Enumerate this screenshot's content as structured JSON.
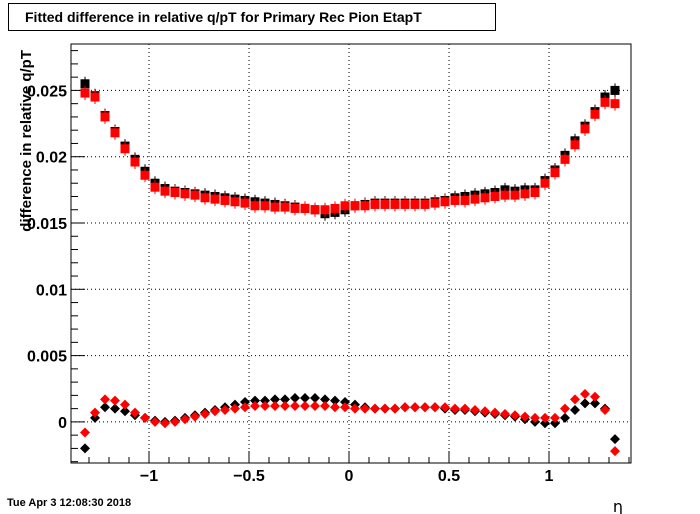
{
  "chart_data": {
    "type": "scatter",
    "title": "Fitted difference in relative q/pT for Primary Rec Pion EtapT",
    "xlabel": "η",
    "ylabel": "difference in relative q/pT",
    "xlim": [
      -1.39,
      1.41
    ],
    "ylim": [
      -0.0031,
      0.0285
    ],
    "grid": true,
    "x_ticks": [
      -1,
      -0.5,
      0,
      0.5,
      1
    ],
    "x_tick_labels": [
      "−1",
      "−0.5",
      "0",
      "0.5",
      "1"
    ],
    "y_ticks": [
      0,
      0.005,
      0.01,
      0.015,
      0.02,
      0.025
    ],
    "y_tick_labels": [
      "0",
      "0.005",
      "0.01",
      "0.015",
      "0.02",
      "0.025"
    ],
    "x": [
      -1.32,
      -1.27,
      -1.22,
      -1.17,
      -1.12,
      -1.07,
      -1.02,
      -0.97,
      -0.92,
      -0.87,
      -0.82,
      -0.77,
      -0.72,
      -0.67,
      -0.62,
      -0.57,
      -0.52,
      -0.47,
      -0.42,
      -0.37,
      -0.32,
      -0.27,
      -0.22,
      -0.17,
      -0.12,
      -0.07,
      -0.02,
      0.03,
      0.08,
      0.13,
      0.18,
      0.23,
      0.28,
      0.33,
      0.38,
      0.43,
      0.48,
      0.53,
      0.58,
      0.63,
      0.68,
      0.73,
      0.78,
      0.83,
      0.88,
      0.93,
      0.98,
      1.03,
      1.08,
      1.13,
      1.18,
      1.23,
      1.28,
      1.33
    ],
    "series": [
      {
        "color": "#000000",
        "marker": "square",
        "values": [
          0.0255,
          0.0246,
          0.0231,
          0.0219,
          0.0208,
          0.0198,
          0.0189,
          0.018,
          0.0176,
          0.0174,
          0.0173,
          0.0172,
          0.0171,
          0.017,
          0.0169,
          0.0168,
          0.0167,
          0.0166,
          0.0165,
          0.0164,
          0.0163,
          0.0162,
          0.0161,
          0.016,
          0.0157,
          0.0158,
          0.016,
          0.0163,
          0.0164,
          0.0165,
          0.0165,
          0.0165,
          0.0165,
          0.0165,
          0.0165,
          0.0166,
          0.0167,
          0.0169,
          0.017,
          0.0171,
          0.0172,
          0.0173,
          0.0175,
          0.0174,
          0.0175,
          0.0175,
          0.0182,
          0.019,
          0.0201,
          0.0212,
          0.0223,
          0.0234,
          0.0245,
          0.025
        ]
      },
      {
        "color": "#ff0000",
        "marker": "square",
        "values": [
          0.0248,
          0.0245,
          0.023,
          0.0218,
          0.0206,
          0.0196,
          0.0186,
          0.0177,
          0.0174,
          0.0173,
          0.0172,
          0.0171,
          0.0169,
          0.0168,
          0.0167,
          0.0166,
          0.0165,
          0.0163,
          0.0163,
          0.0162,
          0.0162,
          0.0161,
          0.0161,
          0.016,
          0.016,
          0.0161,
          0.0163,
          0.0163,
          0.0163,
          0.0164,
          0.0164,
          0.0164,
          0.0164,
          0.0164,
          0.0164,
          0.0165,
          0.0166,
          0.0167,
          0.0167,
          0.0168,
          0.0169,
          0.017,
          0.0171,
          0.0171,
          0.0172,
          0.0173,
          0.018,
          0.0188,
          0.0198,
          0.0209,
          0.0221,
          0.0232,
          0.0241,
          0.024
        ]
      },
      {
        "color": "#000000",
        "marker": "diamond",
        "values": [
          -0.002,
          0.0003,
          0.0011,
          0.001,
          0.0008,
          0.0005,
          0.0003,
          0.0001,
          0.0,
          0.0001,
          0.0003,
          0.0005,
          0.0007,
          0.0009,
          0.0011,
          0.0013,
          0.0015,
          0.0016,
          0.0016,
          0.0017,
          0.0017,
          0.0018,
          0.0018,
          0.0018,
          0.0017,
          0.0016,
          0.0015,
          0.0013,
          0.0011,
          0.001,
          0.001,
          0.001,
          0.0011,
          0.0011,
          0.0011,
          0.0011,
          0.001,
          0.0009,
          0.0009,
          0.0008,
          0.0007,
          0.0006,
          0.0005,
          0.0004,
          0.0002,
          0.0,
          -0.0001,
          -0.0001,
          0.0003,
          0.0009,
          0.0014,
          0.0014,
          0.001,
          -0.0013
        ]
      },
      {
        "color": "#ff0000",
        "marker": "diamond",
        "values": [
          -0.0008,
          0.0007,
          0.0017,
          0.0016,
          0.0013,
          0.0007,
          0.0003,
          0.0,
          -0.0001,
          0.0,
          0.0002,
          0.0004,
          0.0006,
          0.0008,
          0.0009,
          0.001,
          0.0011,
          0.0012,
          0.0012,
          0.0012,
          0.0012,
          0.0012,
          0.0012,
          0.0012,
          0.0012,
          0.0011,
          0.0011,
          0.001,
          0.001,
          0.001,
          0.001,
          0.001,
          0.0011,
          0.0011,
          0.0011,
          0.0011,
          0.0011,
          0.001,
          0.001,
          0.0009,
          0.0008,
          0.0007,
          0.0006,
          0.0005,
          0.0004,
          0.0003,
          0.0003,
          0.0003,
          0.001,
          0.0017,
          0.0021,
          0.0019,
          0.0009,
          -0.0022
        ]
      }
    ]
  },
  "footer": {
    "timestamp": "Tue Apr  3 12:08:30 2018"
  }
}
